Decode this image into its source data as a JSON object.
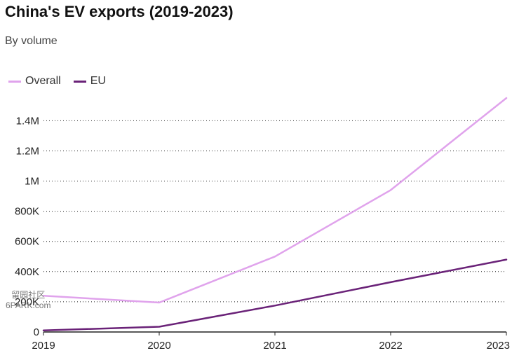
{
  "header": {
    "title": "China's EV exports (2019-2023)",
    "subtitle": "By volume"
  },
  "watermark": {
    "line1": "留园社区",
    "line2": "6PARK.com"
  },
  "chart_data": {
    "type": "line",
    "title": "China's EV exports (2019-2023)",
    "subtitle": "By volume",
    "xlabel": "",
    "ylabel": "",
    "x": [
      "2019",
      "2020",
      "2021",
      "2022",
      "2023"
    ],
    "series": [
      {
        "name": "Overall",
        "color": "#e0a3ec",
        "values": [
          240000,
          195000,
          500000,
          940000,
          1550000
        ]
      },
      {
        "name": "EU",
        "color": "#6a2278",
        "values": [
          10000,
          35000,
          175000,
          330000,
          480000
        ]
      }
    ],
    "yticks": [
      0,
      200000,
      400000,
      600000,
      800000,
      1000000,
      1200000,
      1400000
    ],
    "ytick_labels": [
      "0",
      "200K",
      "400K",
      "600K",
      "800K",
      "1M",
      "1.2M",
      "1.4M"
    ],
    "ylim": [
      0,
      1550000
    ],
    "grid": true,
    "legend": "top-left"
  }
}
